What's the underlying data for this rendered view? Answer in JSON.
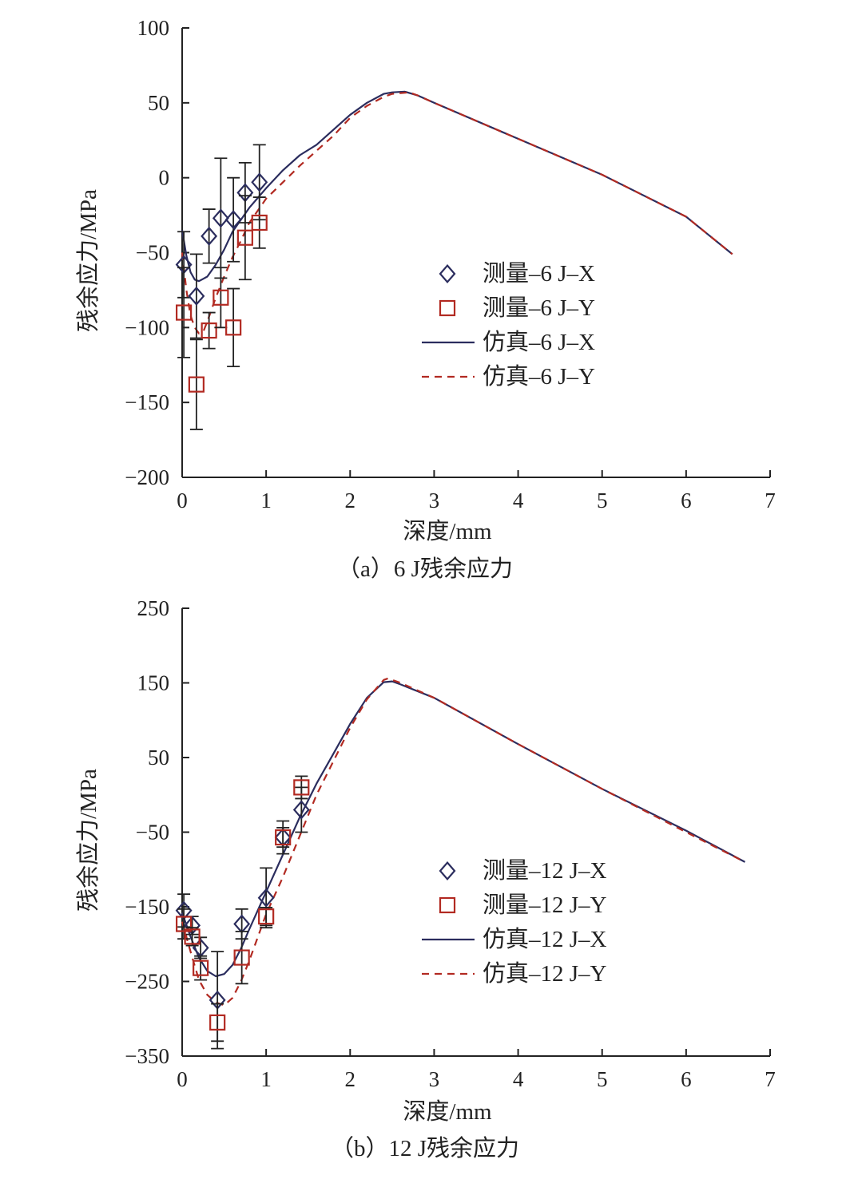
{
  "colors": {
    "x_series": "#2b2d5e",
    "y_series": "#b22a22",
    "axis": "#222222",
    "error_bar": "#222222"
  },
  "chart_data": [
    {
      "type": "scatter",
      "caption": "（a）6 J残余应力",
      "xlabel": "深度/mm",
      "ylabel": "残余应力/MPa",
      "xlim": [
        0,
        7
      ],
      "ylim": [
        -200,
        100
      ],
      "xticks": [
        0,
        1,
        2,
        3,
        4,
        5,
        6,
        7
      ],
      "yticks": [
        100,
        50,
        0,
        -50,
        -100,
        -150,
        -200
      ],
      "grid": false,
      "legend_position": "center",
      "series": [
        {
          "name": "测量–6 J–X",
          "kind": "markers",
          "marker": "diamond",
          "color": "#2b2d5e",
          "points": [
            {
              "x": 0.02,
              "y": -58,
              "err": 22
            },
            {
              "x": 0.17,
              "y": -79,
              "err": 28
            },
            {
              "x": 0.32,
              "y": -39,
              "err": 18
            },
            {
              "x": 0.46,
              "y": -27,
              "err": 40
            },
            {
              "x": 0.61,
              "y": -28,
              "err": 28
            },
            {
              "x": 0.75,
              "y": -10,
              "err": 20
            },
            {
              "x": 0.92,
              "y": -3,
              "err": 25
            }
          ]
        },
        {
          "name": "测量–6 J–Y",
          "kind": "markers",
          "marker": "square",
          "color": "#b22a22",
          "points": [
            {
              "x": 0.02,
              "y": -90,
              "err": 30
            },
            {
              "x": 0.17,
              "y": -138,
              "err": 30
            },
            {
              "x": 0.32,
              "y": -102,
              "err": 12
            },
            {
              "x": 0.46,
              "y": -80,
              "err": 20
            },
            {
              "x": 0.61,
              "y": -100,
              "err": 26
            },
            {
              "x": 0.75,
              "y": -40,
              "err": 28
            },
            {
              "x": 0.92,
              "y": -30,
              "err": 17
            }
          ]
        },
        {
          "name": "仿真–6 J–X",
          "kind": "line",
          "dash": "solid",
          "color": "#2b2d5e",
          "points": [
            [
              0,
              -35
            ],
            [
              0.05,
              -52
            ],
            [
              0.1,
              -63
            ],
            [
              0.15,
              -68
            ],
            [
              0.2,
              -69
            ],
            [
              0.3,
              -66
            ],
            [
              0.4,
              -58
            ],
            [
              0.5,
              -48
            ],
            [
              0.6,
              -36
            ],
            [
              0.8,
              -20
            ],
            [
              1.0,
              -7
            ],
            [
              1.2,
              5
            ],
            [
              1.4,
              15
            ],
            [
              1.6,
              22
            ],
            [
              1.8,
              32
            ],
            [
              2.0,
              42
            ],
            [
              2.2,
              50
            ],
            [
              2.4,
              56
            ],
            [
              2.5,
              57
            ],
            [
              2.65,
              57.5
            ],
            [
              2.8,
              55
            ],
            [
              3.0,
              50
            ],
            [
              4.0,
              26
            ],
            [
              5.0,
              2
            ],
            [
              6.0,
              -26
            ],
            [
              6.55,
              -51
            ]
          ]
        },
        {
          "name": "仿真–6 J–Y",
          "kind": "line",
          "dash": "dashed",
          "color": "#b22a22",
          "points": [
            [
              0,
              -50
            ],
            [
              0.05,
              -75
            ],
            [
              0.1,
              -92
            ],
            [
              0.15,
              -100
            ],
            [
              0.2,
              -104
            ],
            [
              0.25,
              -103
            ],
            [
              0.3,
              -96
            ],
            [
              0.4,
              -80
            ],
            [
              0.5,
              -66
            ],
            [
              0.6,
              -53
            ],
            [
              0.7,
              -42
            ],
            [
              0.8,
              -30
            ],
            [
              1.0,
              -14
            ],
            [
              1.2,
              -3
            ],
            [
              1.4,
              8
            ],
            [
              1.6,
              18
            ],
            [
              1.8,
              28
            ],
            [
              2.0,
              40
            ],
            [
              2.2,
              48
            ],
            [
              2.4,
              54
            ],
            [
              2.5,
              56
            ],
            [
              2.7,
              57
            ],
            [
              2.8,
              55
            ],
            [
              3.0,
              50
            ],
            [
              4.0,
              26
            ],
            [
              5.0,
              2
            ],
            [
              6.0,
              -26
            ],
            [
              6.55,
              -51
            ]
          ]
        }
      ]
    },
    {
      "type": "scatter",
      "caption": "（b）12 J残余应力",
      "xlabel": "深度/mm",
      "ylabel": "残余应力/MPa",
      "xlim": [
        0,
        7
      ],
      "ylim": [
        -350,
        250
      ],
      "xticks": [
        0,
        1,
        2,
        3,
        4,
        5,
        6,
        7
      ],
      "yticks": [
        250,
        150,
        50,
        -50,
        -150,
        -250,
        -350
      ],
      "grid": false,
      "legend_position": "center-right",
      "series": [
        {
          "name": "测量–12 J–X",
          "kind": "markers",
          "marker": "diamond",
          "color": "#2b2d5e",
          "points": [
            {
              "x": 0.02,
              "y": -155,
              "err": 22
            },
            {
              "x": 0.12,
              "y": -175,
              "err": 12
            },
            {
              "x": 0.22,
              "y": -205,
              "err": 14
            },
            {
              "x": 0.42,
              "y": -275,
              "err": 65
            },
            {
              "x": 0.71,
              "y": -173,
              "err": 20
            },
            {
              "x": 1.0,
              "y": -138,
              "err": 40
            },
            {
              "x": 1.2,
              "y": -57,
              "err": 22
            },
            {
              "x": 1.42,
              "y": -20,
              "err": 30
            }
          ]
        },
        {
          "name": "测量–12 J–Y",
          "kind": "markers",
          "marker": "square",
          "color": "#b22a22",
          "points": [
            {
              "x": 0.02,
              "y": -173,
              "err": 20
            },
            {
              "x": 0.12,
              "y": -190,
              "err": 12
            },
            {
              "x": 0.22,
              "y": -232,
              "err": 16
            },
            {
              "x": 0.42,
              "y": -305,
              "err": 25
            },
            {
              "x": 0.71,
              "y": -218,
              "err": 35
            },
            {
              "x": 1.0,
              "y": -163,
              "err": 12
            },
            {
              "x": 1.2,
              "y": -57,
              "err": 13
            },
            {
              "x": 1.42,
              "y": 10,
              "err": 15
            }
          ]
        },
        {
          "name": "仿真–12 J–X",
          "kind": "line",
          "dash": "solid",
          "color": "#2b2d5e",
          "points": [
            [
              0,
              -158
            ],
            [
              0.1,
              -190
            ],
            [
              0.2,
              -218
            ],
            [
              0.3,
              -236
            ],
            [
              0.4,
              -243
            ],
            [
              0.5,
              -240
            ],
            [
              0.6,
              -228
            ],
            [
              0.7,
              -206
            ],
            [
              0.8,
              -180
            ],
            [
              1.0,
              -130
            ],
            [
              1.2,
              -80
            ],
            [
              1.4,
              -30
            ],
            [
              1.6,
              15
            ],
            [
              1.8,
              55
            ],
            [
              2.0,
              95
            ],
            [
              2.2,
              130
            ],
            [
              2.4,
              151
            ],
            [
              2.5,
              152
            ],
            [
              2.6,
              148
            ],
            [
              3.0,
              130
            ],
            [
              4.0,
              68
            ],
            [
              5.0,
              8
            ],
            [
              6.0,
              -48
            ],
            [
              6.7,
              -90
            ]
          ]
        },
        {
          "name": "仿真–12 J–Y",
          "kind": "line",
          "dash": "dashed",
          "color": "#b22a22",
          "points": [
            [
              0,
              -170
            ],
            [
              0.1,
              -210
            ],
            [
              0.2,
              -248
            ],
            [
              0.3,
              -268
            ],
            [
              0.4,
              -278
            ],
            [
              0.5,
              -282
            ],
            [
              0.6,
              -272
            ],
            [
              0.7,
              -250
            ],
            [
              0.8,
              -222
            ],
            [
              1.0,
              -160
            ],
            [
              1.2,
              -110
            ],
            [
              1.4,
              -55
            ],
            [
              1.6,
              0
            ],
            [
              1.8,
              45
            ],
            [
              2.0,
              90
            ],
            [
              2.2,
              128
            ],
            [
              2.4,
              154
            ],
            [
              2.45,
              156
            ],
            [
              2.6,
              150
            ],
            [
              3.0,
              130
            ],
            [
              4.0,
              68
            ],
            [
              5.0,
              8
            ],
            [
              6.0,
              -50
            ],
            [
              6.7,
              -90
            ]
          ]
        }
      ]
    }
  ]
}
